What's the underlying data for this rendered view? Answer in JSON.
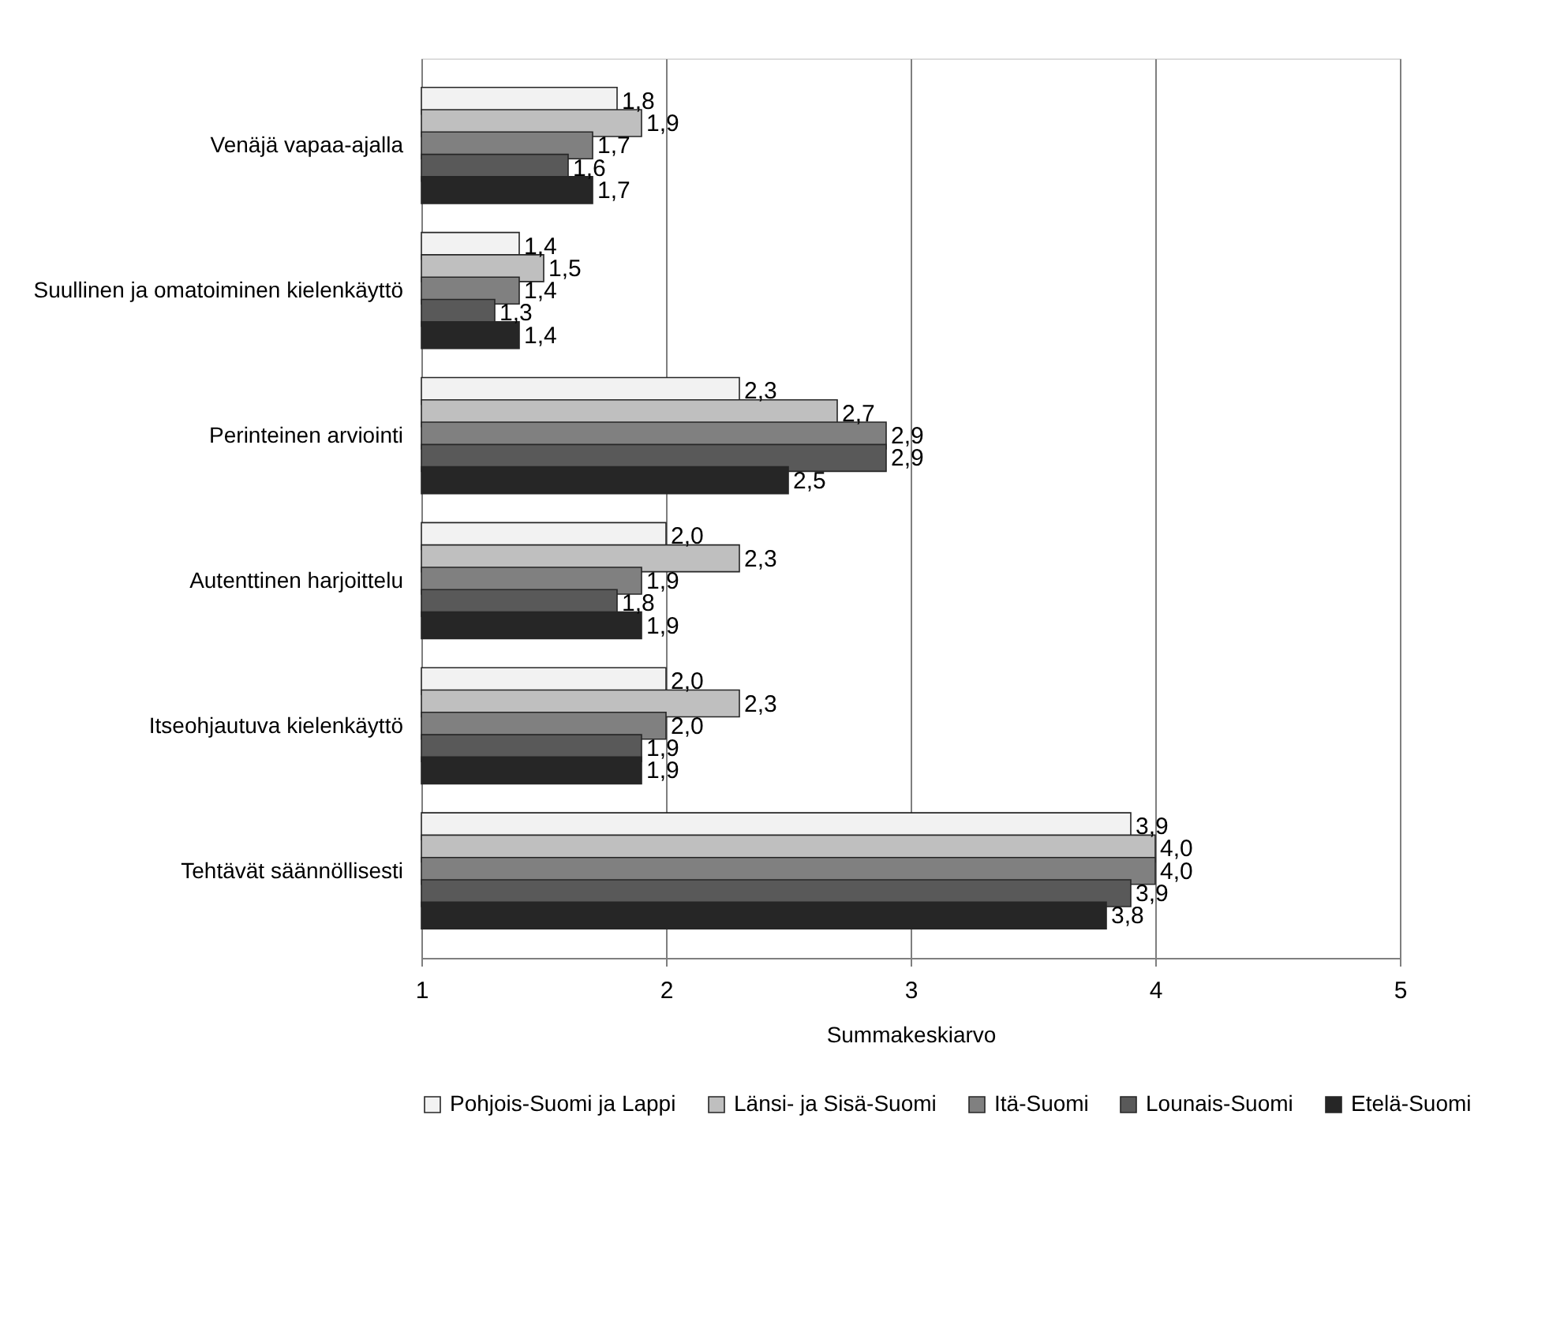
{
  "chart_data": {
    "type": "bar",
    "orientation": "horizontal",
    "xlabel": "Summakeskiarvo",
    "categories": [
      "Venäjä vapaa-ajalla",
      "Suullinen ja omatoiminen kielenkäyttö",
      "Perinteinen arviointi",
      "Autenttinen harjoittelu",
      "Itseohjautuva kielenkäyttö",
      "Tehtävät säännöllisesti"
    ],
    "series": [
      {
        "name": "Pohjois-Suomi ja Lappi",
        "color": "#f2f2f2",
        "values": [
          1.8,
          1.4,
          2.3,
          2.0,
          2.0,
          3.9
        ],
        "value_labels": [
          "1,8",
          "1,4",
          "2,3",
          "2,0",
          "2,0",
          "3,9"
        ]
      },
      {
        "name": "Länsi- ja Sisä-Suomi",
        "color": "#bfbfbf",
        "values": [
          1.9,
          1.5,
          2.7,
          2.3,
          2.3,
          4.0
        ],
        "value_labels": [
          "1,9",
          "1,5",
          "2,7",
          "2,3",
          "2,3",
          "4,0"
        ]
      },
      {
        "name": "Itä-Suomi",
        "color": "#808080",
        "values": [
          1.7,
          1.4,
          2.9,
          1.9,
          2.0,
          4.0
        ],
        "value_labels": [
          "1,7",
          "1,4",
          "2,9",
          "1,9",
          "2,0",
          "4,0"
        ]
      },
      {
        "name": "Lounais-Suomi",
        "color": "#595959",
        "values": [
          1.6,
          1.3,
          2.9,
          1.8,
          1.9,
          3.9
        ],
        "value_labels": [
          "1,6",
          "1,3",
          "2,9",
          "1,8",
          "1,9",
          "3,9"
        ]
      },
      {
        "name": "Etelä-Suomi",
        "color": "#262626",
        "values": [
          1.7,
          1.4,
          2.5,
          1.9,
          1.9,
          3.8
        ],
        "value_labels": [
          "1,7",
          "1,4",
          "2,5",
          "1,9",
          "1,9",
          "3,8"
        ]
      }
    ],
    "xlim": [
      1,
      5
    ],
    "xticks": [
      1,
      2,
      3,
      4,
      5
    ],
    "grid": "x",
    "legend": "bottom"
  }
}
